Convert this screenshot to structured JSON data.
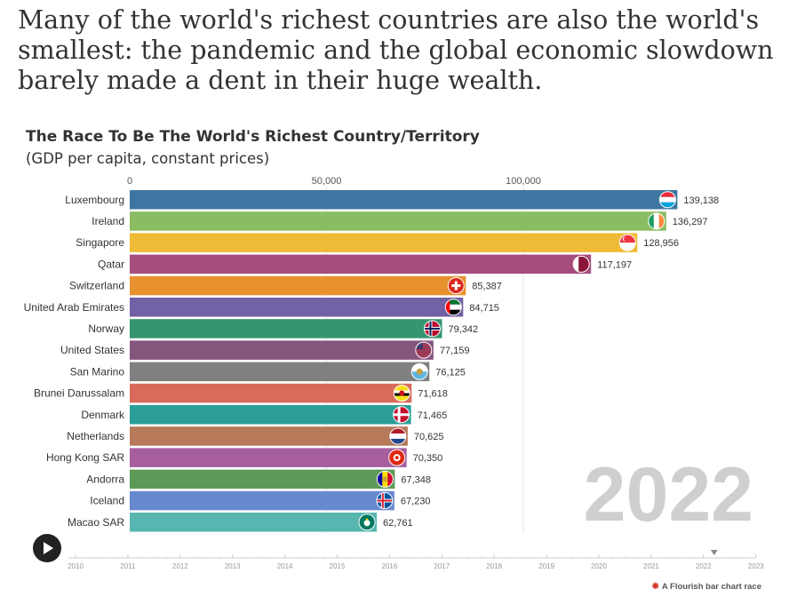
{
  "headline": "Many of the world's richest countries are also the world's smallest: the pandemic and the global economic slowdown barely made a dent in their huge wealth.",
  "chart_data": {
    "type": "bar",
    "title": "The Race To Be The World's Richest Country/Territory",
    "subtitle": "(GDP per capita, constant prices)",
    "year": "2022",
    "xlim": [
      0,
      150000
    ],
    "x_ticks": [
      {
        "value": 0,
        "label": "0"
      },
      {
        "value": 50000,
        "label": "50,000"
      },
      {
        "value": 100000,
        "label": "100,000"
      }
    ],
    "categories": [
      "Luxembourg",
      "Ireland",
      "Singapore",
      "Qatar",
      "Switzerland",
      "United Arab Emirates",
      "Norway",
      "United States",
      "San Marino",
      "Brunei Darussalam",
      "Denmark",
      "Netherlands",
      "Hong Kong SAR",
      "Andorra",
      "Iceland",
      "Macao SAR"
    ],
    "values": [
      139138,
      136297,
      128956,
      117197,
      85387,
      84715,
      79342,
      77159,
      76125,
      71618,
      71465,
      70625,
      70350,
      67348,
      67230,
      62761
    ],
    "value_labels": [
      "139,138",
      "136,297",
      "128,956",
      "117,197",
      "85,387",
      "84,715",
      "79,342",
      "77,159",
      "76,125",
      "71,618",
      "71,465",
      "70,625",
      "70,350",
      "67,348",
      "67,230",
      "62,761"
    ],
    "colors": [
      "#3d76a0",
      "#8abd63",
      "#efbb37",
      "#a54d7c",
      "#e8922f",
      "#7261a4",
      "#359570",
      "#86557e",
      "#808080",
      "#d96b5b",
      "#2b9e98",
      "#b6795a",
      "#a65e9f",
      "#5d9a58",
      "#6689d0",
      "#57b6b0"
    ],
    "flags": [
      "luxembourg-flag",
      "ireland-flag",
      "singapore-flag",
      "qatar-flag",
      "switzerland-flag",
      "uae-flag",
      "norway-flag",
      "usa-flag",
      "san-marino-flag",
      "brunei-flag",
      "denmark-flag",
      "netherlands-flag",
      "hong-kong-flag",
      "andorra-flag",
      "iceland-flag",
      "macao-flag"
    ],
    "timeline": {
      "years": [
        "2010",
        "2011",
        "2012",
        "2013",
        "2014",
        "2015",
        "2016",
        "2017",
        "2018",
        "2019",
        "2020",
        "2021",
        "2022",
        "2023"
      ],
      "current": "2022"
    }
  },
  "controls": {
    "play_icon": "play-icon"
  },
  "credit": "A Flourish bar chart race"
}
